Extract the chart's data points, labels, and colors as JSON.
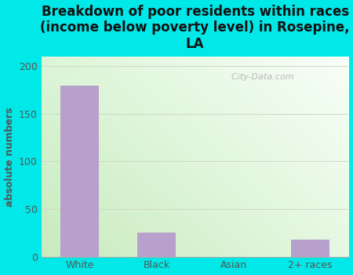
{
  "categories": [
    "White",
    "Black",
    "Asian",
    "2+ races"
  ],
  "values": [
    180,
    25,
    0,
    18
  ],
  "bar_color": "#b8a0cc",
  "title": "Breakdown of poor residents within races\n(income below poverty level) in Rosepine,\nLA",
  "ylabel": "absolute numbers",
  "ylim": [
    0,
    210
  ],
  "yticks": [
    0,
    50,
    100,
    150,
    200
  ],
  "background_color": "#00e8e8",
  "plot_bg_topleft": "#e8f5e2",
  "plot_bg_topright": "#f5fcf5",
  "plot_bg_bottomleft": "#c8ecc0",
  "plot_bg_bottomright": "#e8f8e8",
  "title_fontsize": 12,
  "label_fontsize": 9,
  "tick_fontsize": 9,
  "ylabel_color": "#555555",
  "tick_color": "#555555",
  "watermark": "  City-Data.com",
  "grid_color": "#d0d8c8",
  "grid_linewidth": 0.7
}
